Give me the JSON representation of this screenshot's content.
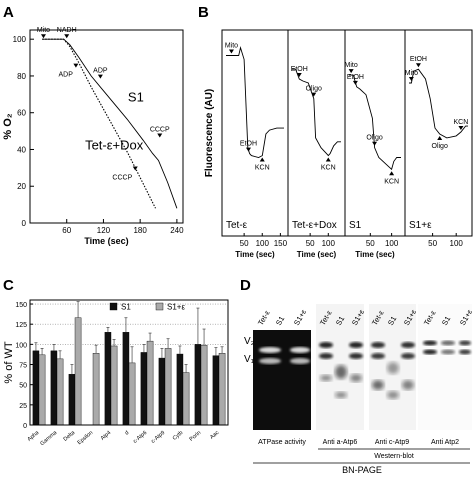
{
  "panels": {
    "a": "A",
    "b": "B",
    "c": "C",
    "d": "D"
  },
  "chart_data": [
    {
      "panel": "A",
      "type": "line",
      "xlabel": "Time (sec)",
      "ylabel": "% O₂",
      "xticks": [
        60,
        120,
        180,
        240
      ],
      "yticks": [
        0,
        20,
        40,
        60,
        80,
        100
      ],
      "xlim": [
        0,
        250
      ],
      "ylim": [
        0,
        105
      ],
      "series": [
        {
          "name": "S1",
          "style": "solid",
          "x": [
            20,
            55,
            65,
            80,
            100,
            120,
            140,
            160,
            185,
            200,
            210,
            225,
            240
          ],
          "y": [
            100,
            100,
            97,
            90,
            80,
            72,
            64,
            56,
            45,
            38,
            34,
            22,
            8
          ]
        },
        {
          "name": "Tet-ε+Dox",
          "style": "dotted",
          "x": [
            20,
            55,
            65,
            80,
            100,
            120,
            140,
            160,
            175,
            190,
            205
          ],
          "y": [
            100,
            100,
            96,
            87,
            74,
            62,
            50,
            38,
            28,
            18,
            8
          ]
        }
      ],
      "series_labels": [
        {
          "text": "S1",
          "x": 160,
          "y": 66
        },
        {
          "text": "Tet-ε+Dox",
          "x": 90,
          "y": 40
        }
      ],
      "annotations": [
        {
          "text": "Mito",
          "x": 22,
          "y": 100,
          "pos": "above"
        },
        {
          "text": "NADH",
          "x": 60,
          "y": 100,
          "pos": "above"
        },
        {
          "text": "ADP",
          "x": 75,
          "y": 84,
          "pos": "left"
        },
        {
          "text": "ADP",
          "x": 115,
          "y": 78,
          "pos": "above"
        },
        {
          "text": "CCCP",
          "x": 212,
          "y": 46,
          "pos": "above"
        },
        {
          "text": "CCCP",
          "x": 172,
          "y": 28,
          "pos": "left"
        }
      ]
    },
    {
      "panel": "B",
      "type": "line",
      "ylabel": "Fluorescence (AU)",
      "subpanels": [
        {
          "label": "Tet-ε",
          "xticks": [
            50,
            100,
            150
          ],
          "xlabel": "Time (sec)",
          "x": [
            0,
            15,
            35,
            40,
            50,
            60,
            65,
            70,
            90,
            100,
            110,
            120,
            140,
            150,
            160
          ],
          "y": [
            92,
            92,
            92,
            96,
            90,
            45,
            42,
            41,
            40,
            41,
            52,
            54,
            55,
            55,
            55
          ],
          "markers": [
            {
              "text": "Mito",
              "x": 15
            },
            {
              "text": "EtOH",
              "x": 62
            },
            {
              "text": "KCN",
              "x": 100,
              "below": true
            }
          ]
        },
        {
          "label": "Tet-ε+Dox",
          "xticks": [
            50,
            100
          ],
          "xlabel": "Time (sec)",
          "x": [
            0,
            10,
            20,
            30,
            45,
            60,
            65,
            80,
            95,
            100,
            105,
            115,
            125,
            135
          ],
          "y": [
            85,
            85,
            80,
            79,
            78,
            70,
            50,
            45,
            42,
            41,
            42,
            46,
            48,
            48
          ],
          "markers": [
            {
              "text": "EtOH",
              "x": 20
            },
            {
              "text": "Oligo",
              "x": 60
            },
            {
              "text": "KCN",
              "x": 100,
              "below": true
            }
          ]
        },
        {
          "label": "S1",
          "xticks": [
            50,
            100
          ],
          "xlabel": "Time (sec)",
          "x": [
            0,
            10,
            18,
            25,
            40,
            55,
            60,
            70,
            90,
            100,
            105,
            112,
            122
          ],
          "y": [
            82,
            82,
            76,
            75,
            72,
            60,
            45,
            40,
            36,
            34,
            38,
            40,
            40
          ],
          "markers": [
            {
              "text": "Mito",
              "x": 5
            },
            {
              "text": "EtOH",
              "x": 15
            },
            {
              "text": "Oligo",
              "x": 60
            },
            {
              "text": "KCN",
              "x": 100,
              "below": true
            }
          ]
        },
        {
          "label": "S1+ε",
          "xticks": [
            50,
            100
          ],
          "xlabel": "",
          "x": [
            0,
            5,
            10,
            20,
            35,
            45,
            55,
            65,
            80,
            100,
            110,
            120,
            125
          ],
          "y": [
            78,
            78,
            84,
            85,
            80,
            70,
            55,
            52,
            50,
            51,
            53,
            56,
            56
          ],
          "markers": [
            {
              "text": "Mito",
              "x": 5
            },
            {
              "text": "EtOH",
              "x": 20
            },
            {
              "text": "Oligo",
              "x": 65,
              "below": true
            },
            {
              "text": "KCN",
              "x": 110
            }
          ]
        }
      ],
      "ylim": [
        0,
        105
      ]
    },
    {
      "panel": "C",
      "type": "bar",
      "ylabel": "% of WT",
      "yticks": [
        0,
        25,
        50,
        75,
        100,
        125,
        150
      ],
      "ylim": [
        0,
        155
      ],
      "gridlines": [
        100,
        125,
        150
      ],
      "legend": "top",
      "categories": [
        "Apha",
        "Gamma",
        "Delta",
        "Epsilon",
        "Atp4",
        "d",
        "c-Atp6",
        "c-Atp9",
        "Cytb",
        "Porin",
        "Aac"
      ],
      "series": [
        {
          "name": "S1",
          "color": "#111111",
          "values": [
            92,
            92,
            63,
            0,
            115,
            115,
            90,
            83,
            88,
            100,
            86
          ],
          "errors": [
            10,
            8,
            12,
            0,
            6,
            18,
            10,
            12,
            10,
            45,
            10
          ]
        },
        {
          "name": "S1+ε",
          "color": "#aaaaaa",
          "values": [
            87,
            82,
            133,
            89,
            98,
            77,
            104,
            95,
            65,
            99,
            89
          ],
          "errors": [
            8,
            10,
            20,
            10,
            8,
            20,
            10,
            12,
            10,
            20,
            8
          ]
        }
      ]
    }
  ],
  "blot": {
    "panel": "D",
    "lanes_group1": [
      "Tet-ε",
      "S1",
      "S1+ε"
    ],
    "lanes_group2": [
      "Tet-ε",
      "S1",
      "S1+ε"
    ],
    "lanes_group3": [
      "Tet-ε",
      "S1",
      "S1+ε"
    ],
    "lanes_group4": [
      "Tet-ε",
      "S1",
      "S1+ε"
    ],
    "v2": "V₂",
    "v1": "V₁",
    "captions": [
      "ATPase activity",
      "Anti a-Atp6",
      "Anti c-Atp9",
      "Anti Atp2"
    ],
    "western": "Western-blot",
    "bnpage": "BN-PAGE"
  }
}
